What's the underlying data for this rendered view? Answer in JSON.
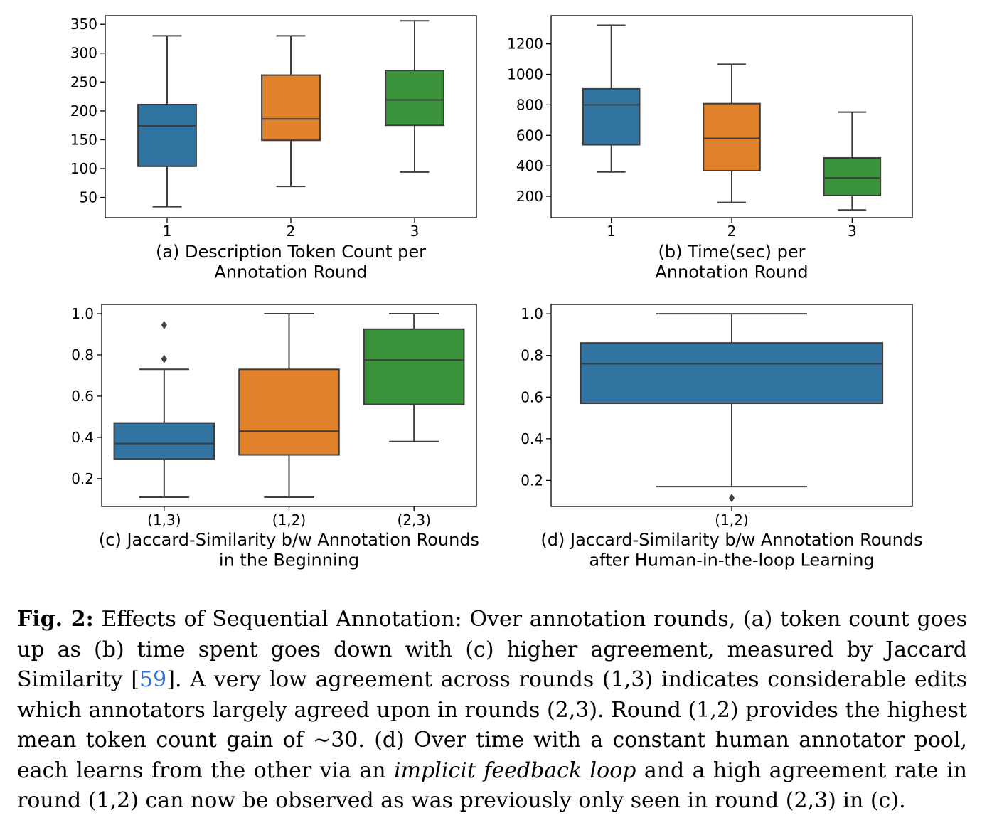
{
  "colors": {
    "round_1": "#3274a1",
    "round_2": "#e1812c",
    "round_3": "#3a923a",
    "line": "#3d3d3d"
  },
  "chart_data": [
    {
      "id": "a",
      "type": "box",
      "title": "(a) Description Token Count per Annotation Round",
      "title_lines": [
        "(a) Description Token Count per",
        "Annotation Round"
      ],
      "xlabel": "",
      "ylabel": "",
      "categories": [
        "1",
        "2",
        "3"
      ],
      "ylim": [
        15,
        365
      ],
      "yticks": [
        50,
        100,
        150,
        200,
        250,
        300,
        350
      ],
      "ytick_labels": [
        "50",
        "100",
        "150",
        "200",
        "250",
        "300",
        "350"
      ],
      "boxes": [
        {
          "label": "1",
          "whislo": 34,
          "q1": 104,
          "med": 174,
          "q3": 211,
          "whishi": 330,
          "fliers": [],
          "color": "#3274a1"
        },
        {
          "label": "2",
          "whislo": 69,
          "q1": 149,
          "med": 186,
          "q3": 262,
          "whishi": 330,
          "fliers": [],
          "color": "#e1812c"
        },
        {
          "label": "3",
          "whislo": 94,
          "q1": 175,
          "med": 219,
          "q3": 270,
          "whishi": 356,
          "fliers": [],
          "color": "#3a923a"
        }
      ]
    },
    {
      "id": "b",
      "type": "box",
      "title": "(b) Time(sec) per Annotation Round",
      "title_lines": [
        "(b) Time(sec) per",
        "Annotation Round"
      ],
      "xlabel": "",
      "ylabel": "",
      "categories": [
        "1",
        "2",
        "3"
      ],
      "ylim": [
        60,
        1385
      ],
      "yticks": [
        200,
        400,
        600,
        800,
        1000,
        1200
      ],
      "ytick_labels": [
        "200",
        "400",
        "600",
        "800",
        "1000",
        "1200"
      ],
      "boxes": [
        {
          "label": "1",
          "whislo": 360,
          "q1": 538,
          "med": 800,
          "q3": 905,
          "whishi": 1322,
          "fliers": [],
          "color": "#3274a1"
        },
        {
          "label": "2",
          "whislo": 160,
          "q1": 368,
          "med": 580,
          "q3": 808,
          "whishi": 1066,
          "fliers": [],
          "color": "#e1812c"
        },
        {
          "label": "3",
          "whislo": 110,
          "q1": 205,
          "med": 320,
          "q3": 452,
          "whishi": 752,
          "fliers": [],
          "color": "#3a923a"
        }
      ]
    },
    {
      "id": "c",
      "type": "box",
      "title": "(c) Jaccard-Similarity b/w Annotation Rounds in the Beginning",
      "title_lines": [
        "(c) Jaccard-Similarity b/w Annotation Rounds",
        "in the Beginning"
      ],
      "xlabel": "",
      "ylabel": "",
      "categories": [
        "(1,3)",
        "(1,2)",
        "(2,3)"
      ],
      "ylim": [
        0.065,
        1.045
      ],
      "yticks": [
        0.2,
        0.4,
        0.6,
        0.8,
        1.0
      ],
      "ytick_labels": [
        "0.2",
        "0.4",
        "0.6",
        "0.8",
        "1.0"
      ],
      "boxes": [
        {
          "label": "(1,3)",
          "whislo": 0.11,
          "q1": 0.295,
          "med": 0.37,
          "q3": 0.47,
          "whishi": 0.73,
          "fliers": [
            0.78,
            0.945
          ],
          "color": "#3274a1"
        },
        {
          "label": "(1,2)",
          "whislo": 0.11,
          "q1": 0.315,
          "med": 0.43,
          "q3": 0.73,
          "whishi": 1.0,
          "fliers": [],
          "color": "#e1812c"
        },
        {
          "label": "(2,3)",
          "whislo": 0.38,
          "q1": 0.56,
          "med": 0.775,
          "q3": 0.925,
          "whishi": 1.0,
          "fliers": [],
          "color": "#3a923a"
        }
      ]
    },
    {
      "id": "d",
      "type": "box",
      "title": "(d) Jaccard-Similarity b/w Annotation Rounds after Human-in-the-loop Learning",
      "title_lines": [
        "(d) Jaccard-Similarity b/w Annotation Rounds",
        "after Human-in-the-loop Learning"
      ],
      "xlabel": "",
      "ylabel": "",
      "categories": [
        "(1,2)"
      ],
      "ylim": [
        0.075,
        1.045
      ],
      "yticks": [
        0.2,
        0.4,
        0.6,
        0.8,
        1.0
      ],
      "ytick_labels": [
        "0.2",
        "0.4",
        "0.6",
        "0.8",
        "1.0"
      ],
      "boxes": [
        {
          "label": "(1,2)",
          "whislo": 0.17,
          "q1": 0.57,
          "med": 0.76,
          "q3": 0.86,
          "whishi": 1.0,
          "fliers": [
            0.115
          ],
          "color": "#3274a1"
        }
      ]
    }
  ],
  "caption": {
    "label": "Fig. 2:",
    "part1": " Effects of Sequential Annotation: Over annotation rounds, (a) token count goes up as (b) time spent goes down with (c) higher agreement, measured by Jaccard Similarity [",
    "ref": "59",
    "part2": "]. A very low agreement across rounds (1,3) indicates considerable edits which annotators largely agreed upon in rounds (2,3). Round (1,2) provides the highest mean token count gain of ∼30. (d) Over time with a constant human annotator pool, each learns from the other via an ",
    "emph": "implicit feedback loop",
    "part3": " and a high agreement rate in round (1,2) can now be observed as was previously only seen in round (2,3) in (c)."
  }
}
